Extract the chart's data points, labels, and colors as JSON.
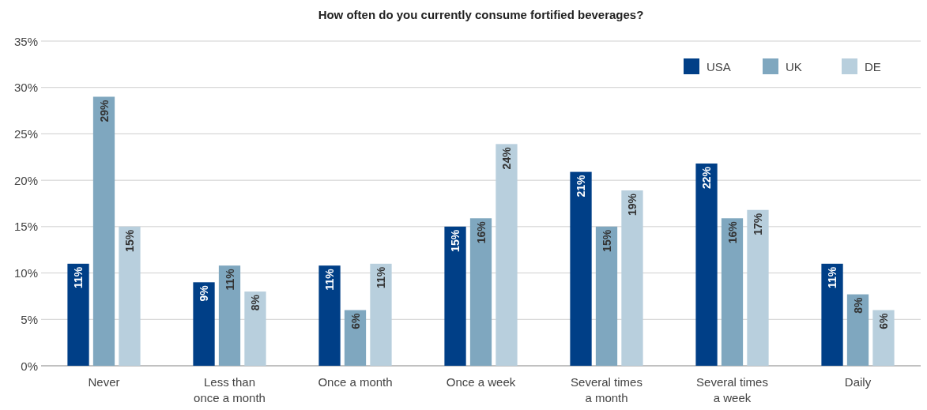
{
  "chart_data": {
    "type": "bar",
    "title": "How often do you currently consume fortified beverages?",
    "categories": [
      "Never",
      "Less than once a month",
      "Once a month",
      "Once a week",
      "Several times a month",
      "Several times a week",
      "Daily"
    ],
    "series": [
      {
        "name": "USA",
        "color": "#003f87",
        "values": [
          11,
          9,
          10.8,
          15,
          20.9,
          21.8,
          11
        ],
        "value_labels": [
          "11%",
          "9%",
          "11%",
          "15%",
          "21%",
          "22%",
          "11%"
        ]
      },
      {
        "name": "UK",
        "color": "#7fa7bf",
        "values": [
          29,
          10.8,
          6,
          15.9,
          15,
          15.9,
          7.7
        ],
        "value_labels": [
          "29%",
          "11%",
          "6%",
          "16%",
          "15%",
          "16%",
          "8%"
        ]
      },
      {
        "name": "DE",
        "color": "#b8cfdd",
        "values": [
          15,
          8,
          11,
          23.9,
          18.9,
          16.8,
          6
        ],
        "value_labels": [
          "15%",
          "8%",
          "11%",
          "24%",
          "19%",
          "17%",
          "6%"
        ]
      }
    ],
    "ylim": [
      0,
      35
    ],
    "yticks": [
      {
        "value": 0,
        "label": "0%"
      },
      {
        "value": 5,
        "label": "5%"
      },
      {
        "value": 10,
        "label": "10%"
      },
      {
        "value": 15,
        "label": "15%"
      },
      {
        "value": 20,
        "label": "20%"
      },
      {
        "value": 25,
        "label": "25%"
      },
      {
        "value": 30,
        "label": "30%"
      },
      {
        "value": 35,
        "label": "35%"
      }
    ],
    "grid": "y",
    "legend": "top right"
  }
}
